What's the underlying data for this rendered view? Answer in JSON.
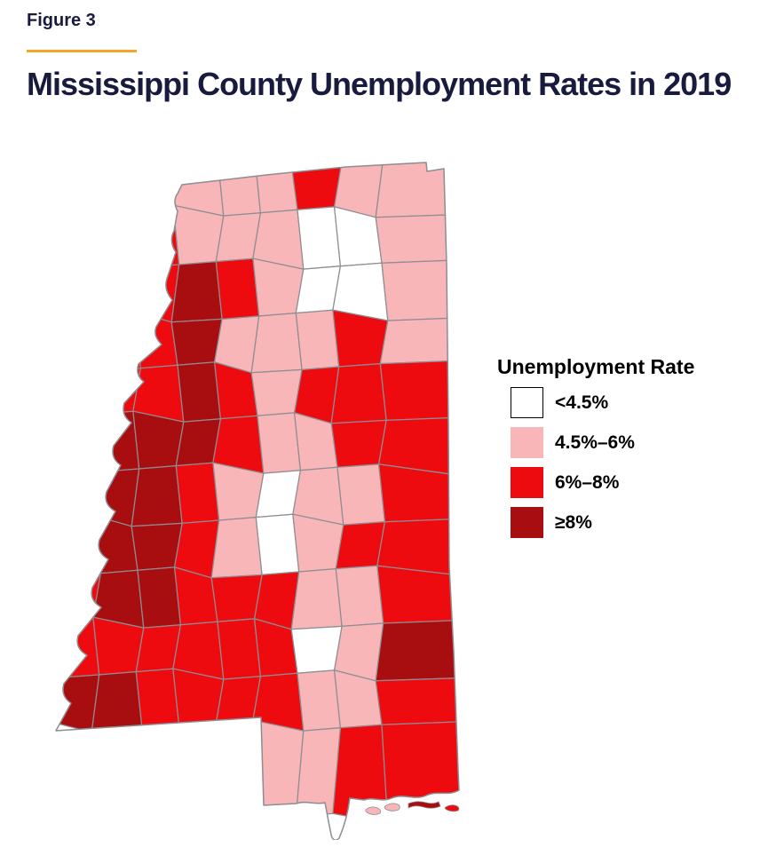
{
  "figure_label": "Figure 3",
  "title": "Mississippi County Unemployment Rates in 2019",
  "colors": {
    "background": "#FFFFFF",
    "heading": "#181B3E",
    "accent_rule": "#F5A42C",
    "map_border": "#8D8D92",
    "legend_text": "#000000"
  },
  "legend": {
    "title": "Unemployment Rate",
    "items": [
      {
        "label": "<4.5%",
        "color": "#FFFFFF",
        "swatch_border": "#000000"
      },
      {
        "label": "4.5%–6%",
        "color": "#F9B6B8",
        "swatch_border": ""
      },
      {
        "label": "6%–8%",
        "color": "#EE0B10",
        "swatch_border": ""
      },
      {
        "label": "≥8%",
        "color": "#A80D10",
        "swatch_border": ""
      }
    ]
  },
  "chart_data": {
    "type": "choropleth",
    "region": "Mississippi counties",
    "year": "2019",
    "title": "Mississippi County Unemployment Rates in 2019",
    "legend_title": "Unemployment Rate",
    "bins": [
      {
        "key": "w",
        "label": "<4.5%",
        "color": "#FFFFFF"
      },
      {
        "key": "p",
        "label": "4.5%–6%",
        "color": "#F9B6B8"
      },
      {
        "key": "r",
        "label": "6%–8%",
        "color": "#EE0B10"
      },
      {
        "key": "d",
        "label": "≥8%",
        "color": "#A80D10"
      }
    ],
    "bin_pattern_notes": {
      "w": "low-rate cluster in north-center, one county in mid-state center, one in south-center",
      "p": "most of the northeast, central band, and gulf-coast counties",
      "r": "river counties north and most southern counties, northeast-center patches",
      "d": "Delta counties along the Mississippi River, southwest corner, one southeast county"
    },
    "county_grid_rows_north_to_south": [
      "...ppprpp",
      "..rpppwwp",
      "..rdrpwwp",
      ".rrdppprp",
      ".rrdrprrr",
      "rdddrpprr",
      "rddrpwppr",
      "rddrpwprr",
      "rddrrrppr",
      "rrrrrrwpd",
      "ddrrrrppr",
      ".....pprr"
    ],
    "islands_west_to_east": [
      "p",
      "p",
      "d",
      "r"
    ]
  }
}
